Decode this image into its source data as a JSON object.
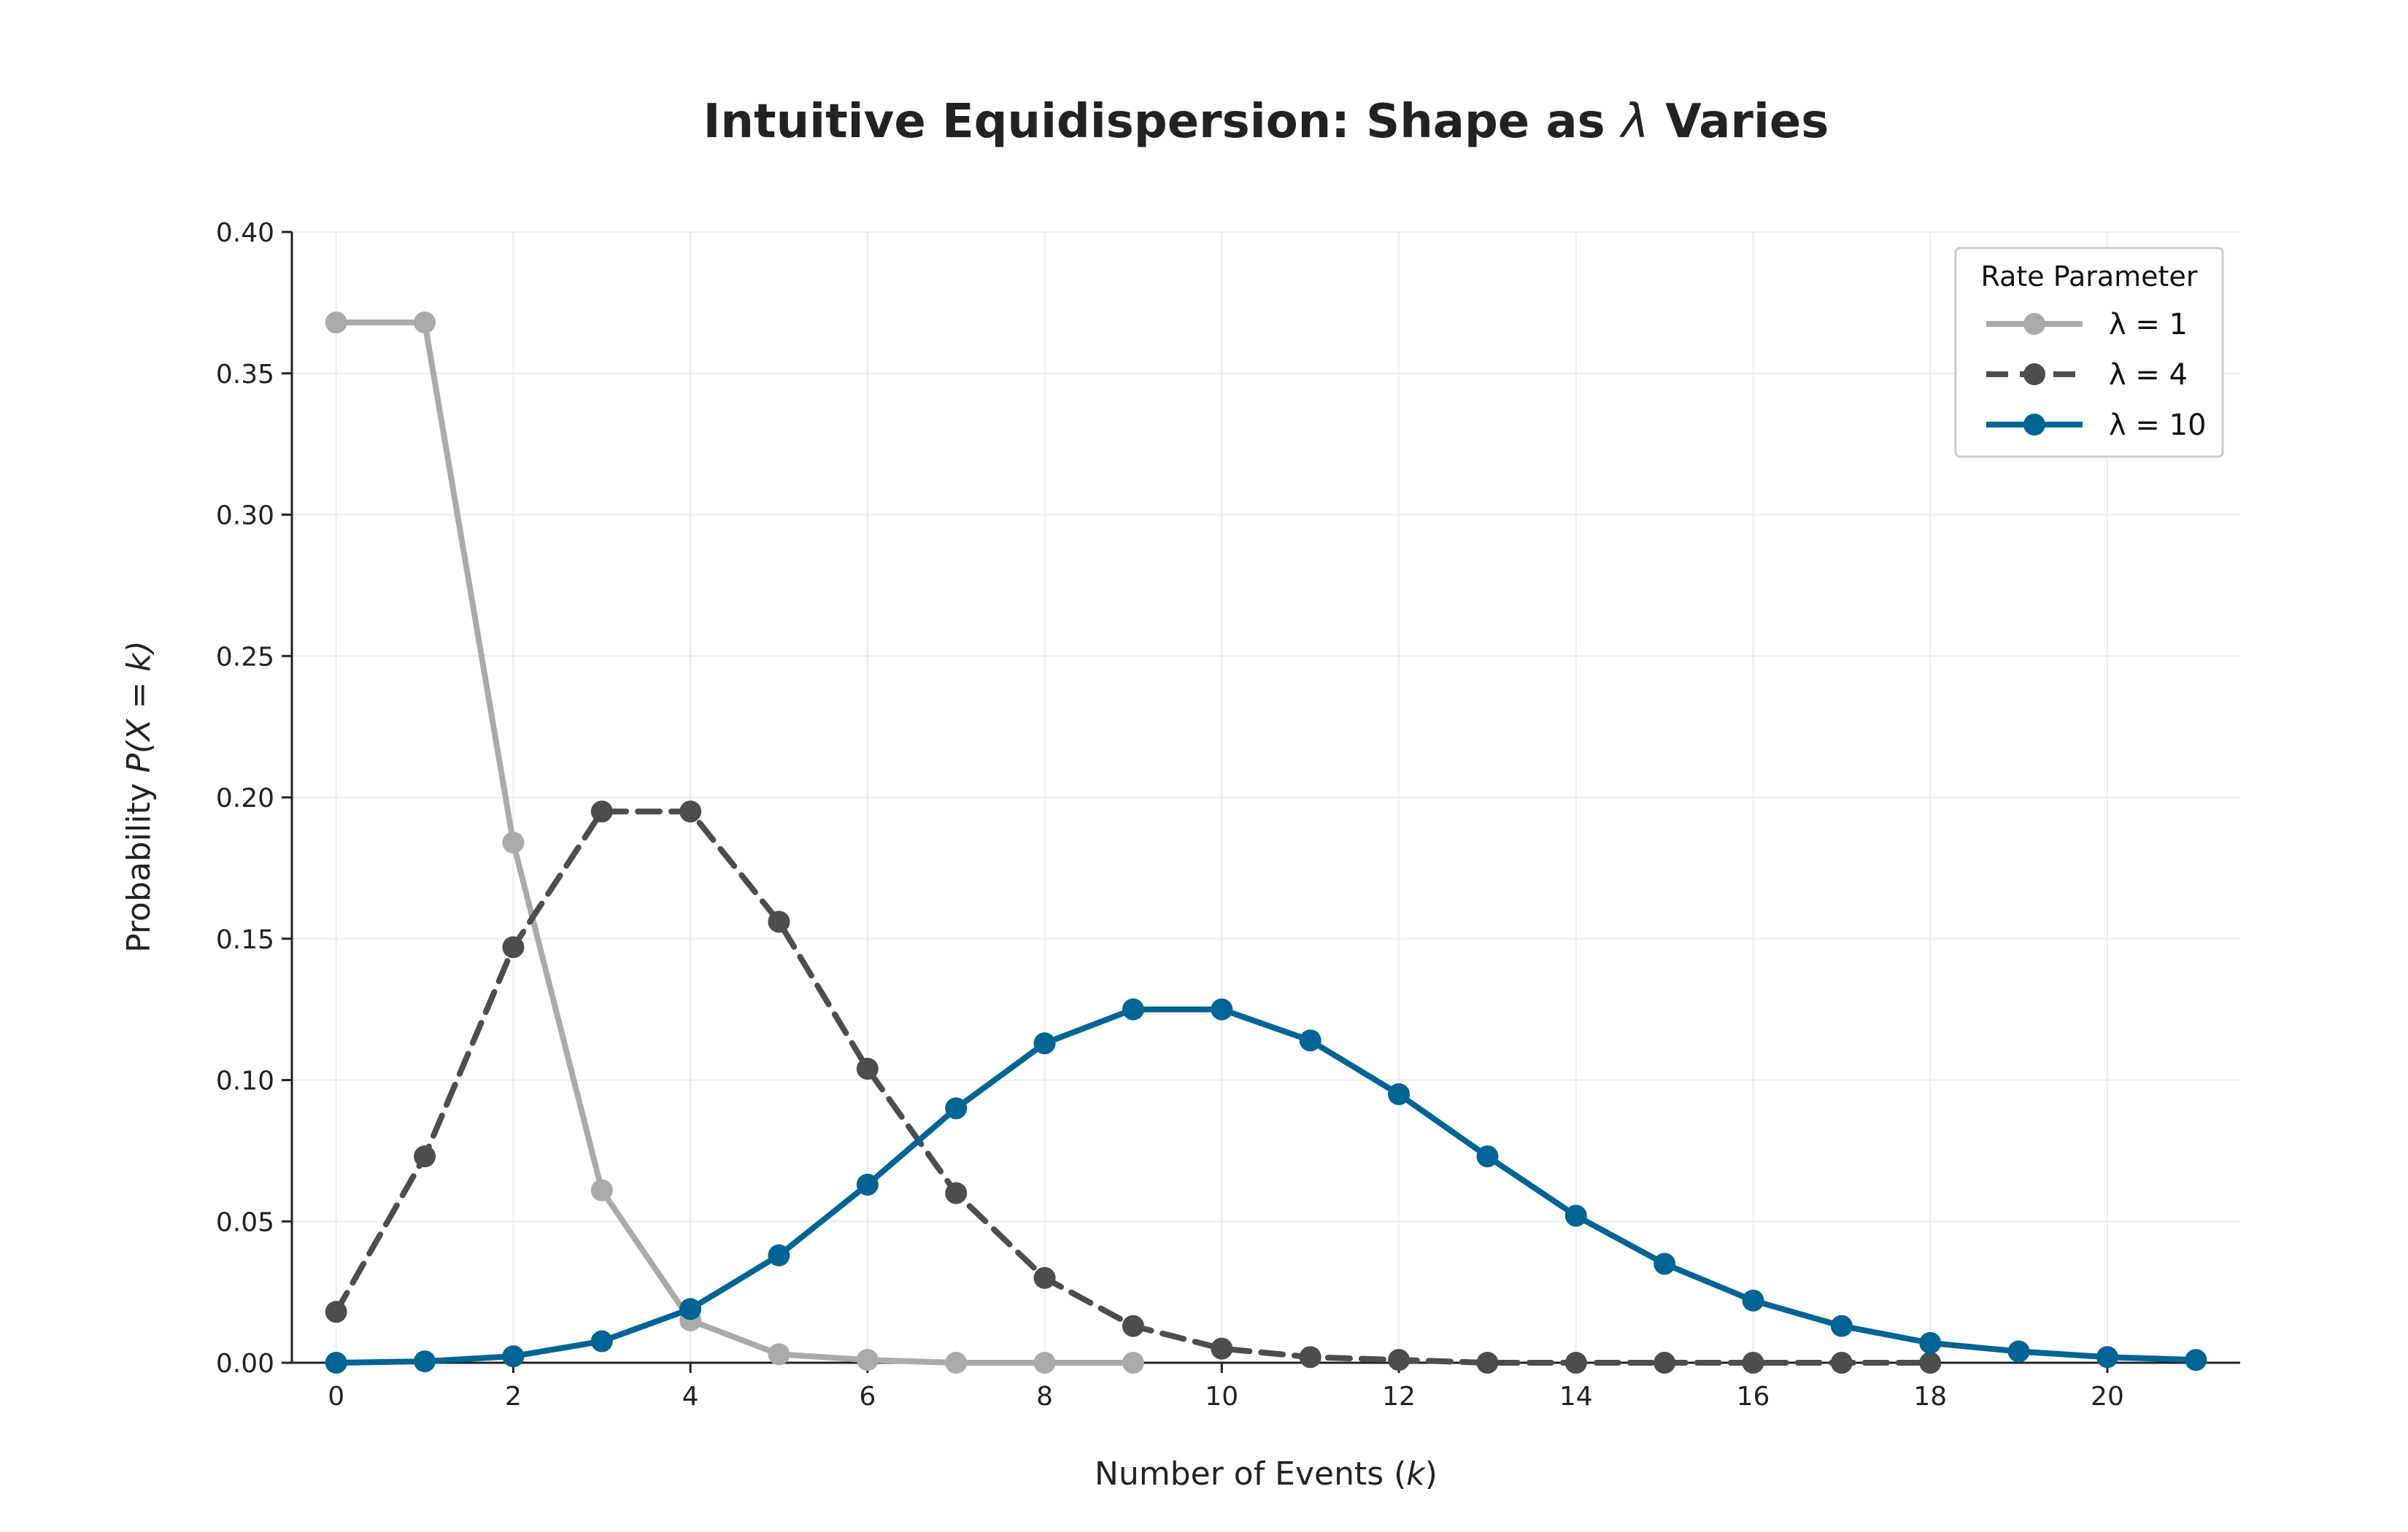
{
  "chart_data": {
    "type": "line",
    "title": "Intuitive Equidispersion: Shape as λ Varies",
    "title_parts": {
      "before": "Intuitive Equidispersion: Shape as ",
      "symbol": "λ",
      "after": " Varies"
    },
    "xlabel": "Number of Events (k)",
    "xlabel_parts": {
      "before": "Number of Events (",
      "var": "k",
      "after": ")"
    },
    "ylabel": "Probability P(X = k)",
    "ylabel_parts": {
      "before": "Probability ",
      "expr": "P(X = k)"
    },
    "xlim": [
      -0.5,
      21.5
    ],
    "ylim": [
      0,
      0.4
    ],
    "xticks": [
      0,
      2,
      4,
      6,
      8,
      10,
      12,
      14,
      16,
      18,
      20
    ],
    "xtick_labels": [
      "0",
      "2",
      "4",
      "6",
      "8",
      "10",
      "12",
      "14",
      "16",
      "18",
      "20"
    ],
    "yticks": [
      0,
      0.05,
      0.1,
      0.15,
      0.2,
      0.25,
      0.3,
      0.35,
      0.4
    ],
    "ytick_labels": [
      "0.00",
      "0.05",
      "0.10",
      "0.15",
      "0.20",
      "0.25",
      "0.30",
      "0.35",
      "0.40"
    ],
    "grid": true,
    "legend": {
      "title": "Rate Parameter",
      "position": "top-right"
    },
    "x": [
      0,
      1,
      2,
      3,
      4,
      5,
      6,
      7,
      8,
      9,
      10,
      11,
      12,
      13,
      14,
      15,
      16,
      17,
      18,
      19,
      20,
      21
    ],
    "series": [
      {
        "name": "λ = 1",
        "color": "#aaaaaa",
        "line_style": "solid",
        "values": [
          0.368,
          0.368,
          0.184,
          0.061,
          0.015,
          0.003,
          0.001,
          0.0,
          0.0,
          0.0,
          null,
          null,
          null,
          null,
          null,
          null,
          null,
          null,
          null,
          null,
          null,
          null
        ]
      },
      {
        "name": "λ = 4",
        "color": "#4d4d4d",
        "line_style": "dashed",
        "values": [
          0.018,
          0.073,
          0.147,
          0.195,
          0.195,
          0.156,
          0.104,
          0.06,
          0.03,
          0.013,
          0.005,
          0.002,
          0.001,
          0.0,
          0.0,
          0.0,
          0.0,
          0.0,
          0.0,
          null,
          null,
          null
        ]
      },
      {
        "name": "λ = 10",
        "color": "#006494",
        "line_style": "solid",
        "values": [
          0.0,
          0.0005,
          0.0023,
          0.0076,
          0.019,
          0.038,
          0.063,
          0.09,
          0.113,
          0.125,
          0.125,
          0.114,
          0.095,
          0.073,
          0.052,
          0.035,
          0.022,
          0.013,
          0.007,
          0.004,
          0.002,
          0.001
        ]
      }
    ]
  }
}
